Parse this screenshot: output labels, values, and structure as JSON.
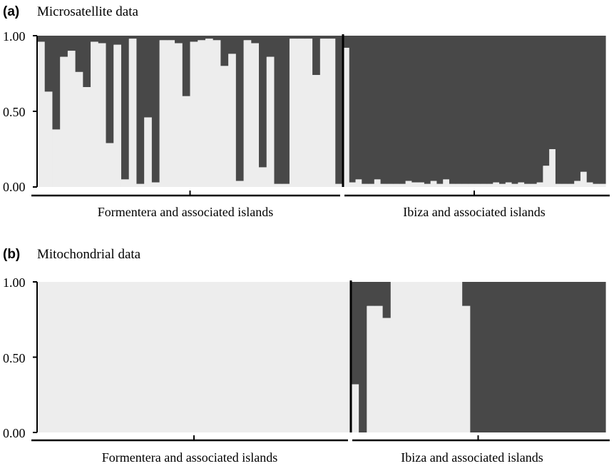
{
  "colors": {
    "dark": "#484848",
    "light": "#ededed",
    "axis": "#000000"
  },
  "chart_data": [
    {
      "type": "bar",
      "stacked": true,
      "panel_letter": "(a)",
      "title": "Microsatellite data",
      "yticks": [
        "0.00",
        "0.50",
        "1.00"
      ],
      "ylim": [
        0,
        1
      ],
      "groups": [
        {
          "label": "Formentera and associated islands",
          "n": 40
        },
        {
          "label": "Ibiza and associated islands",
          "n": 42
        }
      ],
      "series_note": "values = proportion of light-grey cluster per individual; dark grey = 1 - value",
      "values": [
        0.96,
        0.63,
        0.38,
        0.86,
        0.9,
        0.76,
        0.66,
        0.96,
        0.95,
        0.29,
        0.94,
        0.05,
        0.98,
        0.02,
        0.46,
        0.03,
        0.97,
        0.97,
        0.95,
        0.6,
        0.96,
        0.97,
        0.98,
        0.97,
        0.8,
        0.88,
        0.04,
        0.97,
        0.95,
        0.13,
        0.86,
        0.02,
        0.02,
        0.98,
        0.98,
        0.98,
        0.74,
        0.98,
        0.98,
        0.02,
        0.92,
        0.03,
        0.05,
        0.02,
        0.02,
        0.05,
        0.02,
        0.02,
        0.02,
        0.02,
        0.04,
        0.03,
        0.03,
        0.02,
        0.04,
        0.02,
        0.05,
        0.02,
        0.02,
        0.02,
        0.02,
        0.02,
        0.02,
        0.02,
        0.03,
        0.02,
        0.03,
        0.02,
        0.03,
        0.02,
        0.02,
        0.03,
        0.14,
        0.25,
        0.02,
        0.02,
        0.02,
        0.04,
        0.1,
        0.03,
        0.02,
        0.02
      ]
    },
    {
      "type": "bar",
      "stacked": true,
      "panel_letter": "(b)",
      "title": "Mitochondrial data",
      "yticks": [
        "0.00",
        "0.50",
        "1.00"
      ],
      "ylim": [
        0,
        1
      ],
      "groups": [
        {
          "label": "Formentera and associated islands",
          "n": 40
        },
        {
          "label": "Ibiza and associated islands",
          "n": 32
        }
      ],
      "series_note": "values = proportion of light-grey cluster per individual; dark grey = 1 - value",
      "values": [
        1,
        1,
        1,
        1,
        1,
        1,
        1,
        1,
        1,
        1,
        1,
        1,
        1,
        1,
        1,
        1,
        1,
        1,
        1,
        1,
        1,
        1,
        1,
        1,
        1,
        1,
        1,
        1,
        1,
        1,
        1,
        1,
        1,
        1,
        1,
        1,
        1,
        1,
        1,
        1,
        0.32,
        0.0,
        0.84,
        0.84,
        0.76,
        1,
        1,
        1,
        1,
        1,
        1,
        1,
        1,
        1,
        0.84,
        0,
        0,
        0,
        0,
        0,
        0,
        0,
        0,
        0,
        0,
        0,
        0,
        0,
        0,
        0,
        0,
        0
      ]
    }
  ]
}
